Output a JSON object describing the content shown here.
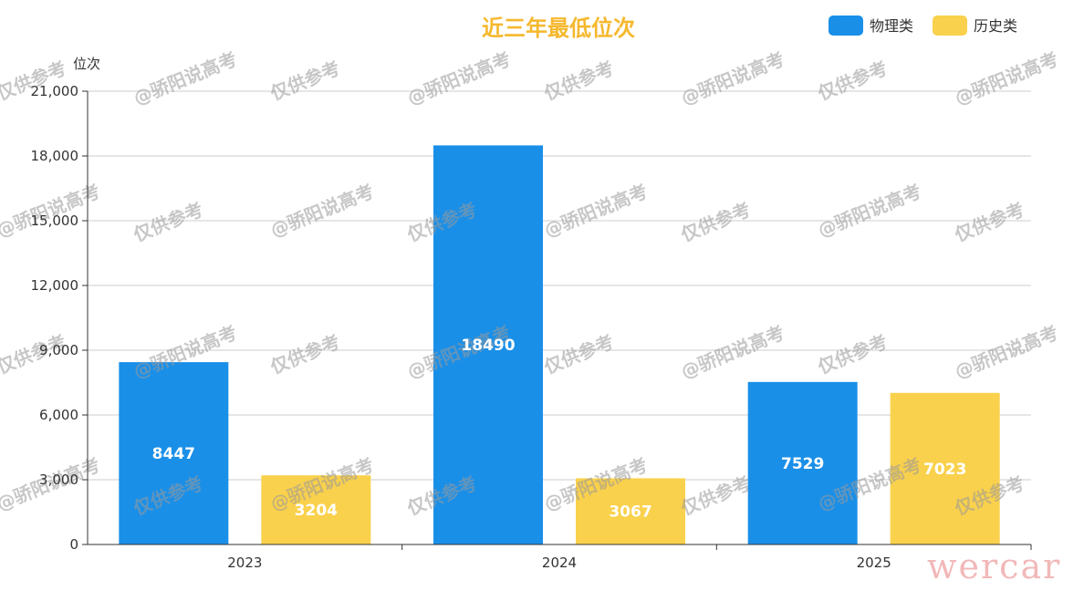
{
  "chart_data": {
    "type": "bar",
    "title": "近三年最低位次",
    "ylabel": "位次",
    "xlabel": "",
    "categories": [
      "2023",
      "2024",
      "2025"
    ],
    "ylim": [
      0,
      21000
    ],
    "yticks": [
      0,
      3000,
      6000,
      9000,
      12000,
      15000,
      18000,
      21000
    ],
    "ytick_labels": [
      "0",
      "3,000",
      "6,000",
      "9,000",
      "12,000",
      "15,000",
      "18,000",
      "21,000"
    ],
    "grid": true,
    "legend_position": "top-right",
    "series": [
      {
        "name": "物理类",
        "color": "#1a8fe8",
        "values": [
          8447,
          18490,
          7529
        ]
      },
      {
        "name": "历史类",
        "color": "#fad14c",
        "values": [
          3204,
          3067,
          7023
        ]
      }
    ],
    "title_color": "#f5b82e",
    "watermarks": [
      "仅供参考",
      "@骄阳说高考"
    ],
    "corner_mark": "wercar"
  }
}
